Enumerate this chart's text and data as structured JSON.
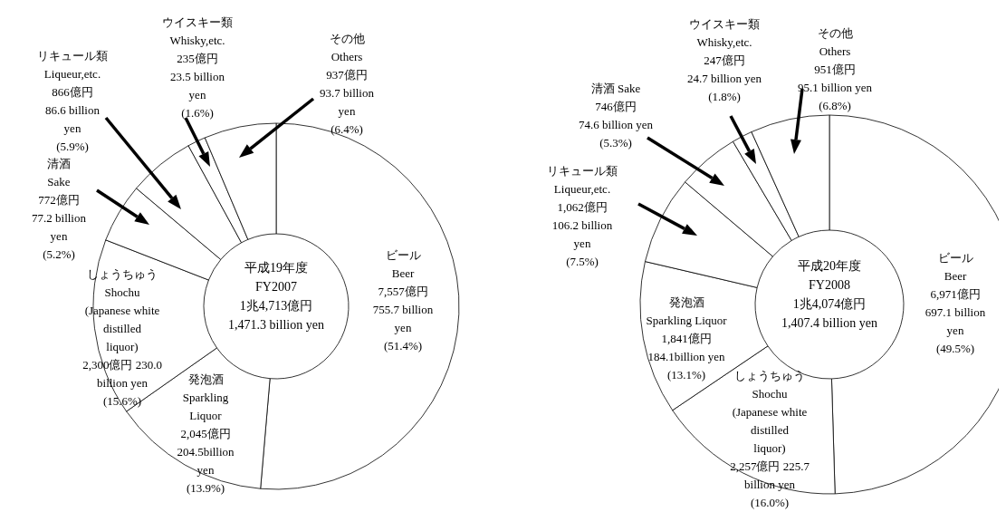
{
  "chart_data": [
    {
      "type": "donut",
      "title": "平成19年度\nFY2007\n1兆4,713億円\n1,471.3 billion yen",
      "categories": [
        "ビール\nBeer",
        "発泡酒\nSparkling\nLiquor",
        "しょうちゅう\nShochu\n(Japanese white\ndistilled\nliquor)",
        "清酒\nSake",
        "リキュール類\nLiqueur,etc.",
        "ウイスキー類\nWhisky,etc.",
        "その他\nOthers"
      ],
      "values": [
        7557,
        2045,
        2300,
        772,
        866,
        235,
        937
      ],
      "value_labels": [
        "7,557億円\n755.7 billion\nyen\n(51.4%)",
        "2,045億円\n204.5billion\nyen\n(13.9%)",
        "2,300億円 230.0\nbillion yen\n(15.6%)",
        "772億円\n77.2 billion\nyen\n(5.2%)",
        "866億円\n86.6 billion\nyen\n(5.9%)",
        "235億円\n23.5 billion\nyen\n(1.6%)",
        "937億円\n93.7 billion\nyen\n(6.4%)"
      ],
      "colors": [
        "#ffffff",
        "#ffffff",
        "#ffffff",
        "#ffffff",
        "#ffffff",
        "#ffffff",
        "#ffffff"
      ]
    },
    {
      "type": "donut",
      "title": "平成20年度\nFY2008\n1兆4,074億円\n1,407.4 billion yen",
      "categories": [
        "ビール\nBeer",
        "しょうちゅう\nShochu\n(Japanese white\ndistilled\nliquor)",
        "発泡酒\nSparkling Liquor",
        "リキュール類\nLiqueur,etc.",
        "清酒 Sake",
        "ウイスキー類\nWhisky,etc.",
        "その他\nOthers"
      ],
      "values": [
        6971,
        2257,
        1841,
        1062,
        746,
        247,
        951
      ],
      "value_labels": [
        "6,971億円\n697.1 billion\nyen\n(49.5%)",
        "2,257億円 225.7\nbillion yen\n(16.0%)",
        "1,841億円\n184.1billion yen\n(13.1%)",
        "1,062億円\n106.2 billion\nyen\n(7.5%)",
        "746億円\n74.6 billion yen\n(5.3%)",
        "247億円\n24.7 billion yen\n(1.8%)",
        "951億円\n95.1 billion yen\n(6.8%)"
      ],
      "colors": [
        "#ffffff",
        "#ffffff",
        "#ffffff",
        "#ffffff",
        "#ffffff",
        "#ffffff",
        "#ffffff"
      ]
    }
  ]
}
